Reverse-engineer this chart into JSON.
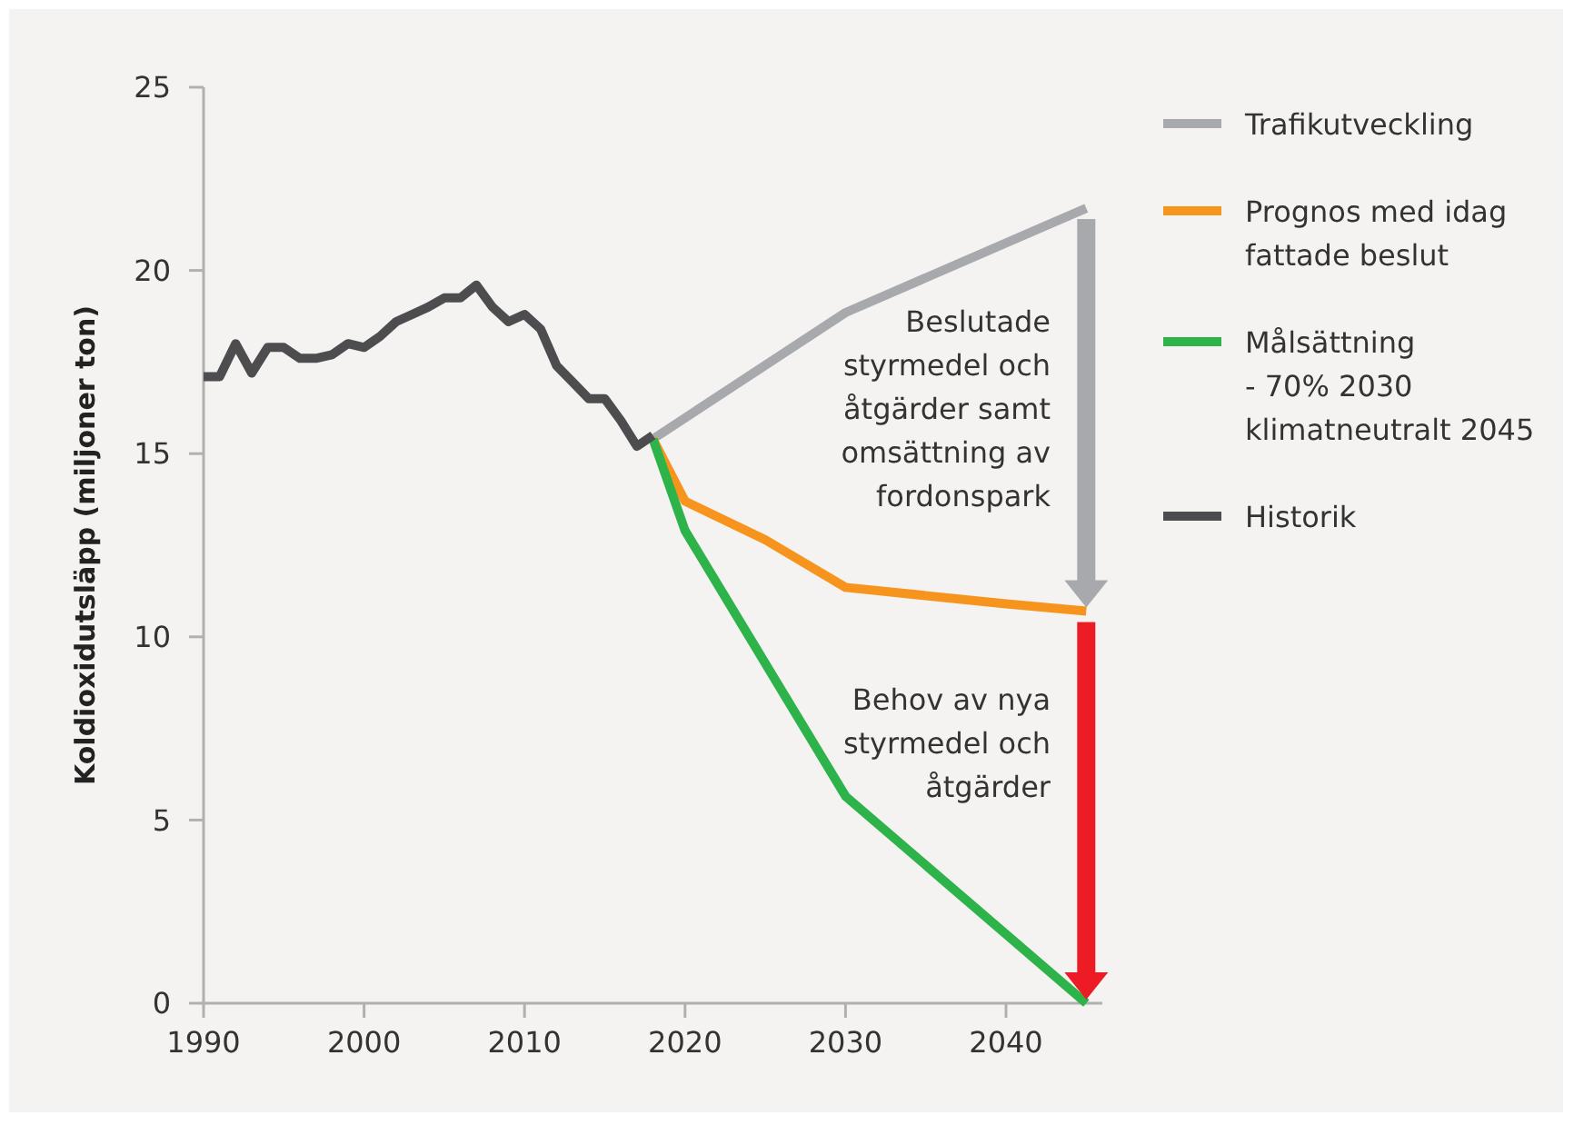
{
  "chart_data": {
    "type": "line",
    "ylabel": "Koldioxidutsläpp (miljoner ton)",
    "xlim": [
      1990,
      2046
    ],
    "xticks": [
      1990,
      2000,
      2010,
      2020,
      2030,
      2040
    ],
    "ylim": [
      0,
      25
    ],
    "yticks": [
      0,
      5,
      10,
      15,
      20,
      25
    ],
    "grid": false,
    "legend": "right",
    "line_style": "solid",
    "marker": "none",
    "series": [
      {
        "name": "Trafikutveckling",
        "color": "#a7a9ac",
        "x": [
          2018,
          2030,
          2045
        ],
        "values": [
          15.4,
          18.85,
          21.7
        ]
      },
      {
        "name": "Prognos med idag\nfattade beslut",
        "color": "#f7941d",
        "x": [
          2018,
          2020,
          2025,
          2030,
          2040,
          2045
        ],
        "values": [
          15.4,
          13.7,
          12.65,
          11.35,
          10.9,
          10.7
        ]
      },
      {
        "name": "Målsättning\n- 70% 2030\nklimatneutralt 2045",
        "color": "#2db34a",
        "x": [
          2018,
          2020,
          2030,
          2045
        ],
        "values": [
          15.4,
          12.9,
          5.65,
          0
        ]
      },
      {
        "name": "Historik",
        "color": "#4d4d4f",
        "x": [
          1990,
          1991,
          1992,
          1993,
          1994,
          1995,
          1996,
          1997,
          1998,
          1999,
          2000,
          2001,
          2002,
          2003,
          2004,
          2005,
          2006,
          2007,
          2008,
          2009,
          2010,
          2011,
          2012,
          2013,
          2014,
          2015,
          2016,
          2017,
          2018
        ],
        "values": [
          17.1,
          17.1,
          18.0,
          17.2,
          17.9,
          17.9,
          17.6,
          17.6,
          17.7,
          18.0,
          17.9,
          18.2,
          18.6,
          18.8,
          19.0,
          19.25,
          19.25,
          19.6,
          19.0,
          18.6,
          18.8,
          18.4,
          17.4,
          16.95,
          16.5,
          16.5,
          15.9,
          15.2,
          15.5
        ]
      }
    ],
    "annotations": [
      "Beslutade\nstyrmedel och\nåtgärder samt\nomsättning av\nfordonspark",
      "Behov av nya\nstyrmedel och\nåtgärder"
    ]
  }
}
